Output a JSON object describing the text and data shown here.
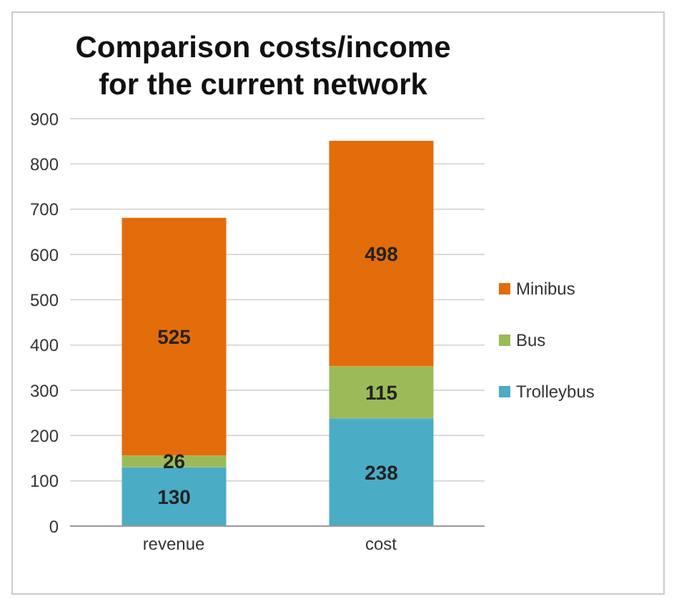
{
  "chart_data": {
    "type": "bar",
    "title": "Comparison costs/income for the current network",
    "categories": [
      "revenue",
      "cost"
    ],
    "stacked": true,
    "series": [
      {
        "name": "Trolleybus",
        "color": "#4bacc6",
        "values": [
          130,
          238
        ]
      },
      {
        "name": "Bus",
        "color": "#9bbb59",
        "values": [
          26,
          115
        ]
      },
      {
        "name": "Minibus",
        "color": "#e36c0a",
        "values": [
          525,
          498
        ]
      }
    ],
    "ylim": [
      0,
      900
    ],
    "yticks": [
      0,
      100,
      200,
      300,
      400,
      500,
      600,
      700,
      800,
      900
    ],
    "grid": "y",
    "legend": "right",
    "data_labels": true
  }
}
